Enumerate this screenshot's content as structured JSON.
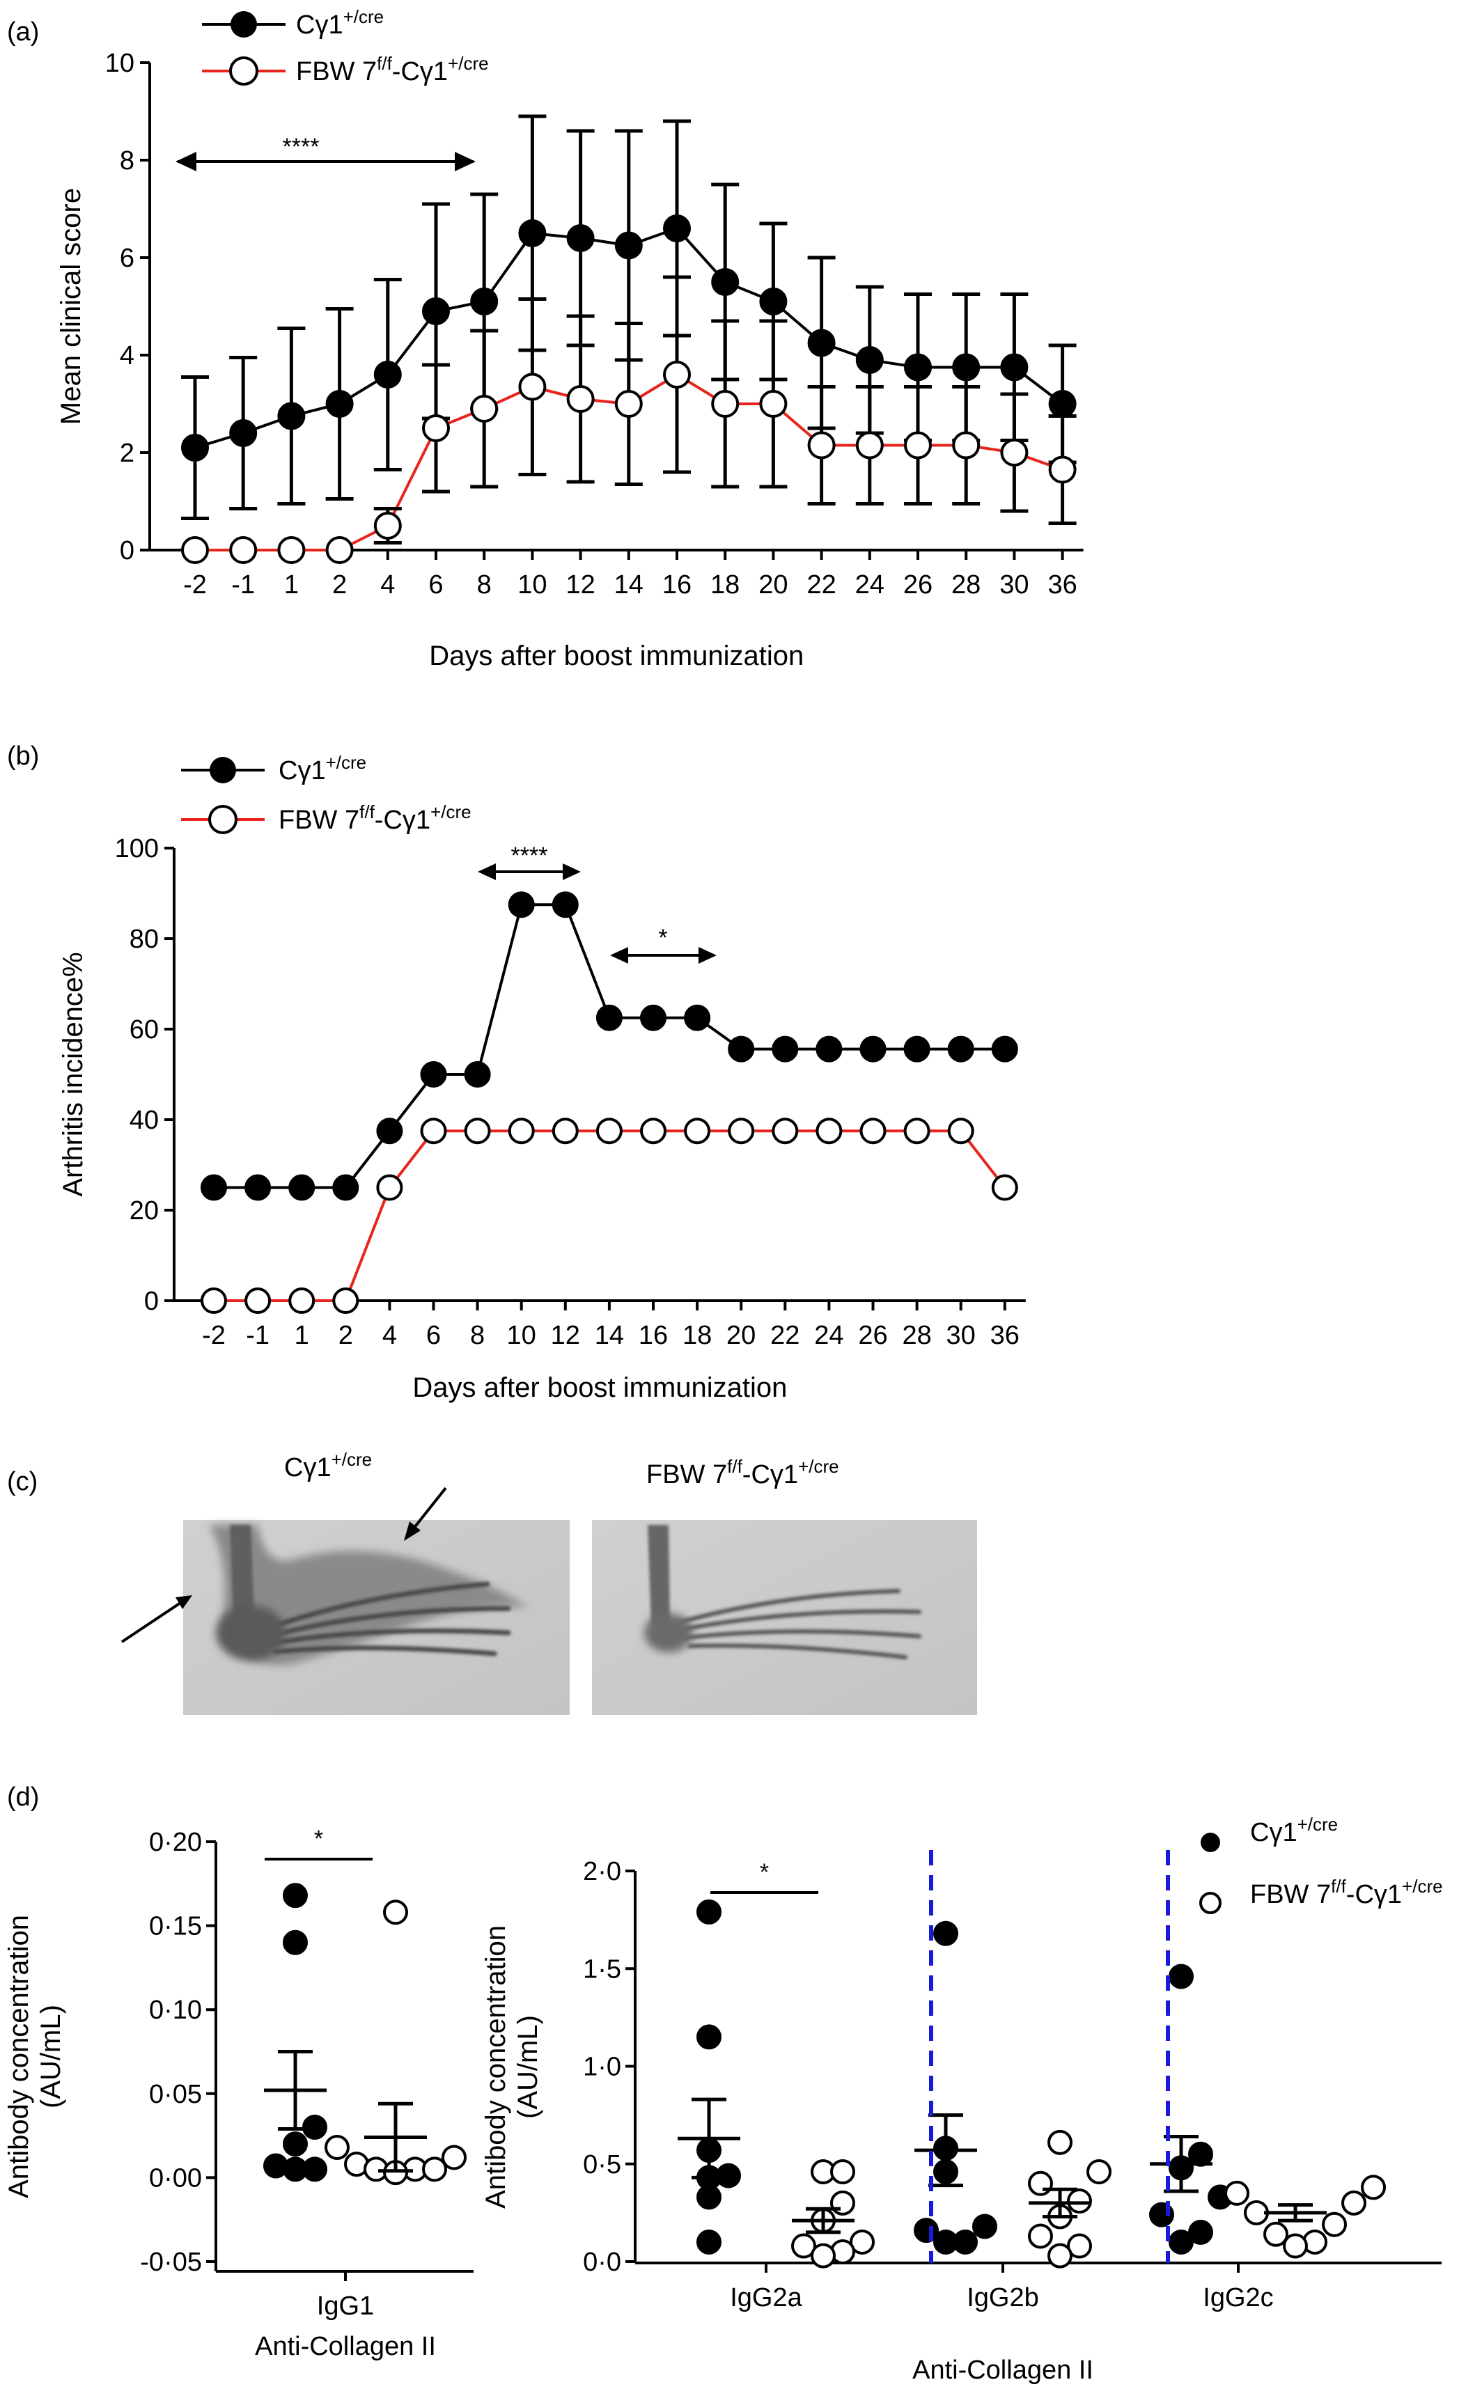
{
  "charts": {
    "a": {
      "panel_label": "(a)",
      "legend": [
        {
          "name_base": "Cγ1",
          "name_sup": "+/cre",
          "marker": "filled",
          "color": "#000000"
        },
        {
          "name_base": "FBW 7",
          "name_sup": "f/f",
          "name_mid": "-Cγ1",
          "name_sup2": "+/cre",
          "marker": "open",
          "color": "#e8241c"
        }
      ],
      "sig_label": "****"
    },
    "b": {
      "panel_label": "(b)",
      "sig_label_1": "****",
      "sig_label_2": "*"
    },
    "c": {
      "panel_label": "(c)",
      "left_title_base": "Cγ1",
      "left_title_sup": "+/cre",
      "right_title_base": "FBW 7",
      "right_title_sup": "f/f",
      "right_title_mid": "-Cγ1",
      "right_title_sup2": "+/cre"
    },
    "d": {
      "panel_label": "(d)",
      "sig_label": "*"
    }
  },
  "chart_data": [
    {
      "type": "line",
      "panel": "a",
      "xlabel": "Days after boost immunization",
      "ylabel": "Mean clinical score",
      "categories": [
        "-2",
        "-1",
        "1",
        "2",
        "4",
        "6",
        "8",
        "10",
        "12",
        "14",
        "16",
        "18",
        "20",
        "22",
        "24",
        "26",
        "28",
        "30",
        "36"
      ],
      "ylim": [
        0,
        10
      ],
      "yticks": [
        "0",
        "2",
        "4",
        "6",
        "8",
        "10"
      ],
      "series": [
        {
          "name": "Cγ1+/cre",
          "marker": "filled",
          "color": "#000000",
          "values": [
            2.1,
            2.4,
            2.75,
            3.0,
            3.6,
            4.9,
            5.1,
            6.5,
            6.4,
            6.25,
            6.6,
            5.5,
            5.1,
            4.25,
            3.9,
            3.75,
            3.75,
            3.75,
            3.0
          ],
          "error": [
            1.45,
            1.55,
            1.8,
            1.95,
            1.95,
            2.2,
            2.2,
            2.4,
            2.2,
            2.35,
            2.2,
            2.0,
            1.6,
            1.75,
            1.5,
            1.5,
            1.5,
            1.5,
            1.2
          ]
        },
        {
          "name": "FBW 7f/f-Cγ1+/cre",
          "marker": "open",
          "color": "#e8241c",
          "values": [
            0,
            0,
            0,
            0,
            0.5,
            2.5,
            2.9,
            3.35,
            3.1,
            3.0,
            3.6,
            3.0,
            3.0,
            2.15,
            2.15,
            2.15,
            2.15,
            2.0,
            1.65
          ],
          "error": [
            0,
            0,
            0,
            0,
            0.35,
            1.3,
            1.6,
            1.8,
            1.7,
            1.65,
            2.0,
            1.7,
            1.7,
            1.2,
            1.2,
            1.2,
            1.2,
            1.2,
            1.1
          ]
        }
      ],
      "annotations": [
        {
          "text": "****",
          "from": "-2",
          "to": "8"
        }
      ]
    },
    {
      "type": "line",
      "panel": "b",
      "xlabel": "Days after boost immunization",
      "ylabel": "Arthritis incidence%",
      "categories": [
        "-2",
        "-1",
        "1",
        "2",
        "4",
        "6",
        "8",
        "10",
        "12",
        "14",
        "16",
        "18",
        "20",
        "22",
        "24",
        "26",
        "28",
        "30",
        "36"
      ],
      "ylim": [
        0,
        100
      ],
      "yticks": [
        "0",
        "20",
        "40",
        "60",
        "80",
        "100"
      ],
      "series": [
        {
          "name": "Cγ1+/cre",
          "marker": "filled",
          "color": "#000000",
          "values": [
            25,
            25,
            25,
            25,
            37.5,
            50,
            50,
            87.5,
            87.5,
            62.5,
            62.5,
            62.5,
            55.6,
            55.6,
            55.6,
            55.6,
            55.6,
            55.6,
            55.6
          ]
        },
        {
          "name": "FBW 7f/f-Cγ1+/cre",
          "marker": "open",
          "color": "#e8241c",
          "values": [
            0,
            0,
            0,
            0,
            25,
            37.5,
            37.5,
            37.5,
            37.5,
            37.5,
            37.5,
            37.5,
            37.5,
            37.5,
            37.5,
            37.5,
            37.5,
            37.5,
            25
          ]
        }
      ],
      "annotations": [
        {
          "text": "****",
          "from": "8",
          "to": "12"
        },
        {
          "text": "*",
          "from": "14",
          "to": "20"
        }
      ]
    },
    {
      "type": "scatter",
      "panel": "d-left",
      "ylabel": "Antibody concentration (AU/mL)",
      "ylim": [
        -0.05,
        0.2
      ],
      "yticks": [
        "-0·05",
        "0·00",
        "0·05",
        "0·10",
        "0·15",
        "0·20"
      ],
      "categories": [
        "IgG1"
      ],
      "group_label": "Anti-Collagen II",
      "series": [
        {
          "name": "Cγ1+/cre",
          "marker": "filled",
          "values": [
            [
              0.168,
              0.14,
              0.03,
              0.02,
              0.007,
              0.005,
              0.005
            ]
          ],
          "mean": [
            0.052
          ],
          "sem": [
            0.023
          ]
        },
        {
          "name": "FBW 7f/f-Cγ1+/cre",
          "marker": "open",
          "values": [
            [
              0.158,
              0.018,
              0.012,
              0.008,
              0.005,
              0.005,
              0.005,
              0.003
            ]
          ],
          "mean": [
            0.024
          ],
          "sem": [
            0.02
          ]
        }
      ],
      "annotations": [
        {
          "text": "*",
          "category": "IgG1"
        }
      ]
    },
    {
      "type": "scatter",
      "panel": "d-right",
      "ylabel": "Antibody concentration (AU/mL)",
      "ylim": [
        0,
        2.0
      ],
      "yticks": [
        "0·0",
        "0·5",
        "1·0",
        "1·5",
        "2·0"
      ],
      "categories": [
        "IgG2a",
        "IgG2b",
        "IgG2c"
      ],
      "group_label": "Anti-Collagen II",
      "series": [
        {
          "name": "Cγ1+/cre",
          "marker": "filled",
          "values": [
            [
              1.79,
              1.15,
              0.57,
              0.44,
              0.43,
              0.33,
              0.1
            ],
            [
              1.68,
              0.58,
              0.46,
              0.18,
              0.16,
              0.1,
              0.1
            ],
            [
              1.46,
              0.55,
              0.48,
              0.33,
              0.24,
              0.15,
              0.1
            ]
          ],
          "mean": [
            0.63,
            0.57,
            0.5
          ],
          "sem": [
            0.2,
            0.18,
            0.14
          ]
        },
        {
          "name": "FBW 7f/f-Cγ1+/cre",
          "marker": "open",
          "values": [
            [
              0.46,
              0.46,
              0.3,
              0.21,
              0.1,
              0.08,
              0.05,
              0.03
            ],
            [
              0.61,
              0.46,
              0.4,
              0.31,
              0.23,
              0.13,
              0.08,
              0.03
            ],
            [
              0.38,
              0.35,
              0.3,
              0.25,
              0.19,
              0.14,
              0.1,
              0.08
            ]
          ],
          "mean": [
            0.21,
            0.3,
            0.25
          ],
          "sem": [
            0.06,
            0.07,
            0.04
          ]
        }
      ],
      "annotations": [
        {
          "text": "*",
          "category": "IgG2a"
        }
      ]
    }
  ]
}
